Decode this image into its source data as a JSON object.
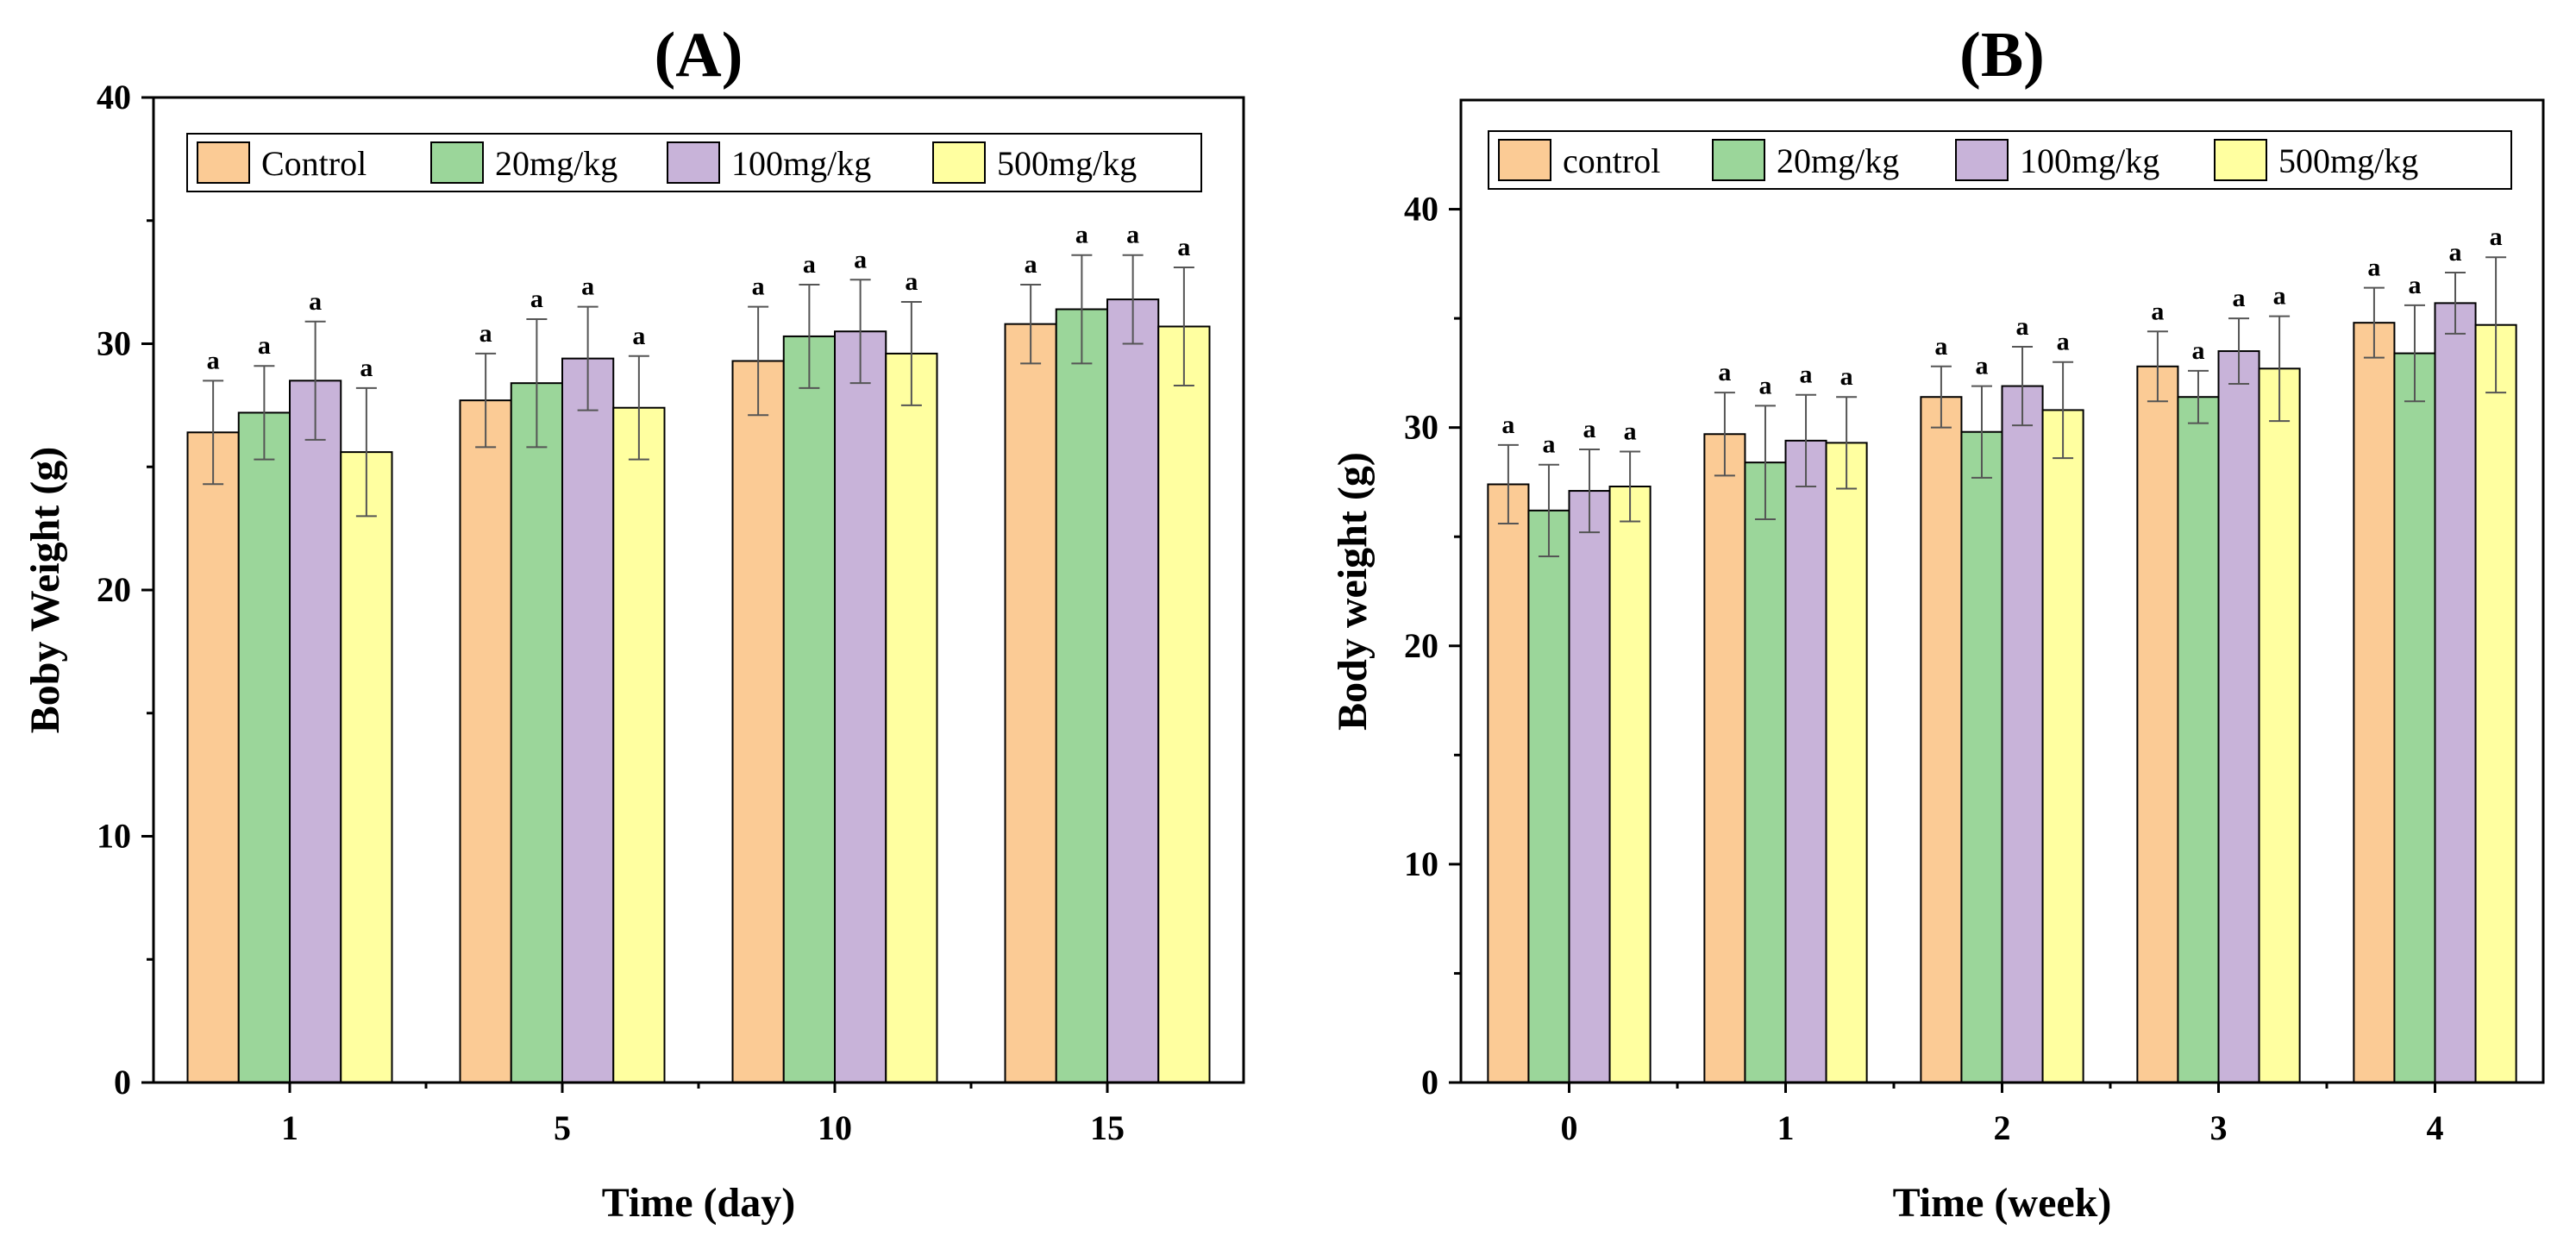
{
  "chart_data": [
    {
      "panel_label": "(A)",
      "type": "bar",
      "xlabel": "Time (day)",
      "ylabel": "Boby Weight (g)",
      "ylim": [
        0,
        40
      ],
      "yticks": [
        "0",
        "10",
        "20",
        "30",
        "40"
      ],
      "categories": [
        "1",
        "5",
        "10",
        "15"
      ],
      "series": [
        {
          "name": "Control",
          "color": "#FBCB95",
          "values": [
            26.4,
            27.7,
            29.3,
            30.8
          ],
          "errors": [
            2.1,
            1.9,
            2.2,
            1.6
          ]
        },
        {
          "name": "20mg/kg",
          "color": "#9BD69A",
          "values": [
            27.2,
            28.4,
            30.3,
            31.4
          ],
          "errors": [
            1.9,
            2.6,
            2.1,
            2.2
          ]
        },
        {
          "name": "100mg/kg",
          "color": "#C8B3D9",
          "values": [
            28.5,
            29.4,
            30.5,
            31.8
          ],
          "errors": [
            2.4,
            2.1,
            2.1,
            1.8
          ]
        },
        {
          "name": "500mg/kg",
          "color": "#FFFFA0",
          "values": [
            25.6,
            27.4,
            29.6,
            30.7
          ],
          "errors": [
            2.6,
            2.1,
            2.1,
            2.4
          ]
        }
      ],
      "annotations": [
        [
          "a",
          "a",
          "a",
          "a"
        ],
        [
          "a",
          "a",
          "a",
          "a"
        ],
        [
          "a",
          "a",
          "a",
          "a"
        ],
        [
          "a",
          "a",
          "a",
          "a"
        ]
      ],
      "legend_position": "top"
    },
    {
      "panel_label": "(B)",
      "type": "bar",
      "xlabel": "Time (week)",
      "ylabel": "Body weight (g)",
      "ylim": [
        0,
        45
      ],
      "yticks": [
        "0",
        "10",
        "20",
        "30",
        "40"
      ],
      "categories": [
        "0",
        "1",
        "2",
        "3",
        "4"
      ],
      "series": [
        {
          "name": "control",
          "color": "#FBCB95",
          "values": [
            27.4,
            29.7,
            31.4,
            32.8,
            34.8
          ],
          "errors": [
            1.8,
            1.9,
            1.4,
            1.6,
            1.6
          ]
        },
        {
          "name": "20mg/kg",
          "color": "#9BD69A",
          "values": [
            26.2,
            28.4,
            29.8,
            31.4,
            33.4
          ],
          "errors": [
            2.1,
            2.6,
            2.1,
            1.2,
            2.2
          ]
        },
        {
          "name": "100mg/kg",
          "color": "#C8B3D9",
          "values": [
            27.1,
            29.4,
            31.9,
            33.5,
            35.7
          ],
          "errors": [
            1.9,
            2.1,
            1.8,
            1.5,
            1.4
          ]
        },
        {
          "name": "500mg/kg",
          "color": "#FFFFA0",
          "values": [
            27.3,
            29.3,
            30.8,
            32.7,
            34.7
          ],
          "errors": [
            1.6,
            2.1,
            2.2,
            2.4,
            3.1
          ]
        }
      ],
      "annotations": [
        [
          "a",
          "a",
          "a",
          "a"
        ],
        [
          "a",
          "a",
          "a",
          "a"
        ],
        [
          "a",
          "a",
          "a",
          "a"
        ],
        [
          "a",
          "a",
          "a",
          "a"
        ],
        [
          "a",
          "a",
          "a",
          "a"
        ]
      ],
      "legend_position": "top"
    }
  ]
}
